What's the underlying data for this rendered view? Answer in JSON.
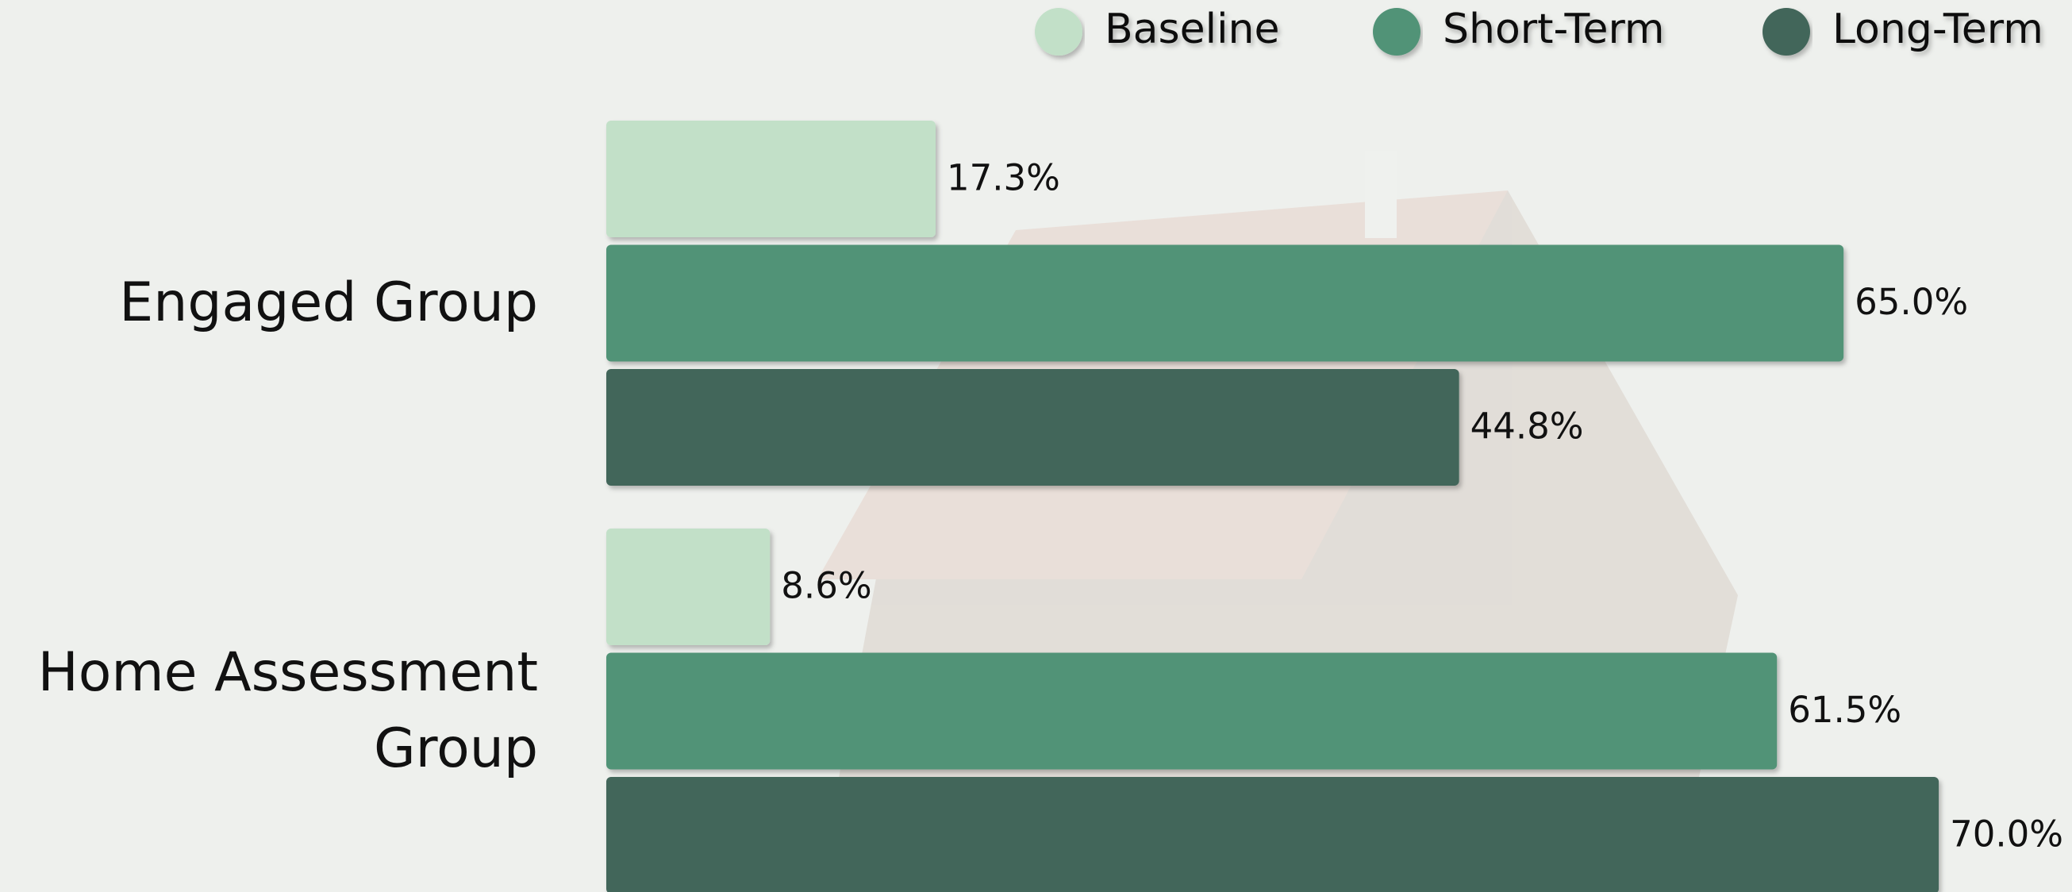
{
  "chart_data": {
    "type": "bar",
    "orientation": "horizontal",
    "categories": [
      "Engaged Group",
      "Home Assessment Group"
    ],
    "series": [
      {
        "name": "Baseline",
        "color": "#c2e0c8",
        "values": [
          17.3,
          8.6
        ],
        "value_labels": [
          "17.3%",
          "8.6%"
        ]
      },
      {
        "name": "Short-Term",
        "color": "#519377",
        "values": [
          65.0,
          61.5
        ],
        "value_labels": [
          "65.0%",
          "61.5%"
        ]
      },
      {
        "name": "Long-Term",
        "color": "#43665a",
        "values": [
          44.8,
          70.0
        ],
        "value_labels": [
          "44.8%",
          "70.0%"
        ]
      }
    ],
    "xlim": [
      0,
      77
    ],
    "legend": "top-right"
  }
}
